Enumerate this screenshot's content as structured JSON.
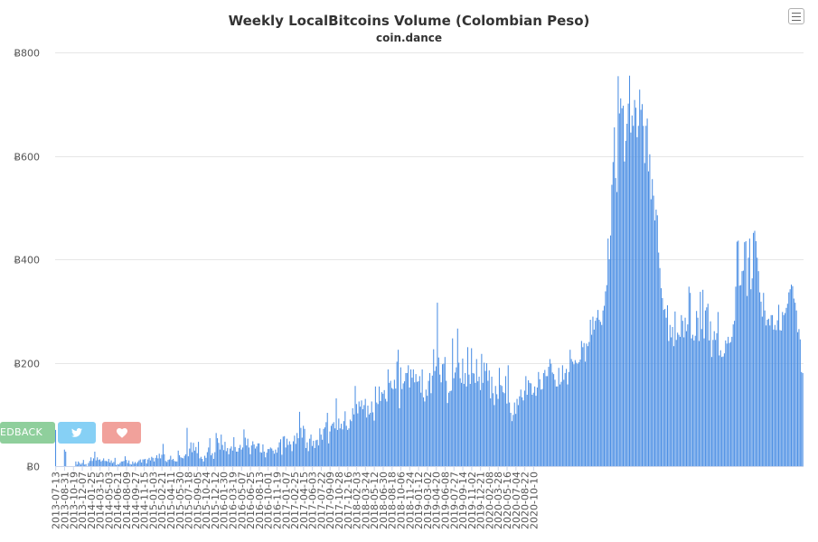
{
  "header": {
    "title": "Weekly LocalBitcoins Volume (Colombian Peso)",
    "subtitle": "coin.dance",
    "menu_icon": "hamburger-menu-icon"
  },
  "side_buttons": {
    "feedback_label": "EDBACK",
    "twitter_icon": "twitter-bird-icon",
    "heart_icon": "heart-icon",
    "colors": {
      "feedback": "#8fcf9c",
      "twitter": "#86d0f5",
      "heart": "#f1a19b"
    }
  },
  "chart_data": {
    "type": "bar",
    "title": "Weekly LocalBitcoins Volume (Colombian Peso)",
    "subtitle": "coin.dance",
    "xlabel": "",
    "ylabel": "",
    "ylim": [
      0,
      800
    ],
    "yticks": [
      0,
      200,
      400,
      600,
      800
    ],
    "ytick_prefix": "Ƀ",
    "grid": true,
    "legend": "none",
    "bar_color": "#4c8fe4",
    "x_tick_labels": [
      "2013-07-13",
      "2013-08-31",
      "2013-10-19",
      "2013-12-07",
      "2014-01-25",
      "2014-03-15",
      "2014-05-03",
      "2014-06-21",
      "2014-08-09",
      "2014-09-27",
      "2014-11-15",
      "2015-01-03",
      "2015-02-21",
      "2015-04-11",
      "2015-05-30",
      "2015-07-18",
      "2015-09-05",
      "2015-10-24",
      "2015-12-12",
      "2016-01-30",
      "2016-03-19",
      "2016-05-07",
      "2016-06-25",
      "2016-08-13",
      "2016-10-01",
      "2016-11-19",
      "2017-01-07",
      "2017-02-25",
      "2017-04-15",
      "2017-06-03",
      "2017-07-22",
      "2017-09-09",
      "2017-10-28",
      "2017-12-16",
      "2018-02-03",
      "2018-03-24",
      "2018-05-12",
      "2018-06-30",
      "2018-08-18",
      "2018-10-06",
      "2018-11-24",
      "2019-01-12",
      "2019-03-02",
      "2019-04-20",
      "2019-06-08",
      "2019-07-27",
      "2019-09-14",
      "2019-11-02",
      "2019-12-21",
      "2020-02-08",
      "2020-03-28",
      "2020-05-16",
      "2020-07-04",
      "2020-08-22",
      "2020-10-10"
    ],
    "values": [
      70,
      0,
      0,
      0,
      0,
      0,
      0,
      32,
      28,
      0,
      0,
      0,
      0,
      0,
      0,
      0,
      9,
      3,
      9,
      6,
      3,
      6,
      12,
      3,
      4,
      0,
      6,
      10,
      17,
      10,
      15,
      28,
      11,
      17,
      12,
      13,
      9,
      11,
      15,
      10,
      10,
      9,
      14,
      7,
      11,
      6,
      8,
      16,
      2,
      4,
      3,
      6,
      9,
      9,
      10,
      19,
      12,
      6,
      11,
      4,
      3,
      9,
      5,
      8,
      5,
      8,
      11,
      13,
      7,
      13,
      13,
      14,
      5,
      13,
      16,
      11,
      18,
      16,
      9,
      16,
      21,
      15,
      24,
      15,
      22,
      43,
      23,
      10,
      8,
      12,
      13,
      20,
      12,
      14,
      10,
      9,
      9,
      30,
      21,
      17,
      16,
      15,
      20,
      23,
      74,
      19,
      34,
      46,
      27,
      45,
      30,
      37,
      25,
      47,
      15,
      18,
      14,
      9,
      20,
      16,
      27,
      36,
      54,
      21,
      25,
      14,
      27,
      64,
      54,
      45,
      32,
      61,
      41,
      31,
      47,
      29,
      35,
      23,
      34,
      38,
      30,
      56,
      37,
      28,
      28,
      35,
      41,
      32,
      36,
      71,
      55,
      40,
      53,
      36,
      23,
      40,
      48,
      42,
      34,
      38,
      44,
      44,
      27,
      26,
      42,
      28,
      17,
      26,
      33,
      33,
      36,
      34,
      30,
      24,
      32,
      26,
      36,
      46,
      52,
      22,
      57,
      58,
      36,
      53,
      41,
      48,
      42,
      29,
      48,
      59,
      43,
      64,
      54,
      105,
      74,
      55,
      78,
      72,
      35,
      46,
      29,
      53,
      61,
      39,
      49,
      35,
      50,
      51,
      40,
      73,
      61,
      51,
      72,
      75,
      85,
      103,
      44,
      67,
      78,
      82,
      85,
      73,
      131,
      70,
      92,
      73,
      82,
      71,
      87,
      106,
      78,
      70,
      73,
      90,
      87,
      112,
      100,
      155,
      120,
      102,
      125,
      115,
      127,
      110,
      118,
      130,
      94,
      117,
      100,
      103,
      125,
      104,
      88,
      154,
      123,
      120,
      154,
      126,
      143,
      140,
      147,
      130,
      125,
      187,
      161,
      165,
      151,
      149,
      167,
      150,
      202,
      225,
      112,
      191,
      149,
      160,
      164,
      180,
      180,
      195,
      152,
      187,
      171,
      187,
      162,
      178,
      163,
      164,
      174,
      142,
      187,
      133,
      125,
      148,
      136,
      165,
      180,
      141,
      175,
      226,
      184,
      193,
      316,
      210,
      177,
      162,
      197,
      198,
      211,
      165,
      122,
      142,
      145,
      146,
      247,
      170,
      181,
      191,
      266,
      200,
      170,
      161,
      208,
      159,
      180,
      154,
      230,
      177,
      159,
      228,
      180,
      179,
      161,
      207,
      164,
      173,
      147,
      217,
      161,
      200,
      184,
      199,
      165,
      185,
      131,
      173,
      141,
      118,
      155,
      139,
      130,
      190,
      157,
      155,
      143,
      141,
      174,
      121,
      195,
      123,
      103,
      87,
      99,
      123,
      101,
      130,
      118,
      135,
      148,
      133,
      127,
      146,
      174,
      138,
      166,
      161,
      160,
      138,
      142,
      154,
      136,
      152,
      182,
      168,
      148,
      149,
      180,
      186,
      174,
      174,
      192,
      207,
      198,
      181,
      178,
      167,
      154,
      154,
      190,
      158,
      163,
      195,
      167,
      180,
      188,
      158,
      182,
      225,
      207,
      202,
      197,
      205,
      200,
      198,
      201,
      206,
      242,
      230,
      238,
      202,
      237,
      232,
      240,
      283,
      254,
      289,
      264,
      281,
      287,
      302,
      283,
      279,
      273,
      301,
      310,
      338,
      350,
      440,
      400,
      446,
      544,
      588,
      655,
      557,
      530,
      754,
      682,
      711,
      692,
      697,
      589,
      629,
      662,
      701,
      755,
      645,
      678,
      658,
      708,
      693,
      636,
      658,
      728,
      689,
      700,
      658,
      586,
      658,
      672,
      570,
      603,
      516,
      555,
      523,
      475,
      496,
      485,
      413,
      383,
      344,
      325,
      302,
      304,
      287,
      311,
      242,
      273,
      249,
      269,
      232,
      299,
      244,
      258,
      254,
      250,
      292,
      281,
      249,
      287,
      261,
      274,
      347,
      335,
      247,
      254,
      243,
      252,
      300,
      287,
      242,
      337,
      265,
      341,
      247,
      301,
      307,
      314,
      243,
      280,
      211,
      244,
      261,
      244,
      257,
      298,
      214,
      224,
      211,
      212,
      218,
      243,
      237,
      250,
      238,
      240,
      250,
      274,
      281,
      347,
      434,
      436,
      349,
      350,
      377,
      378,
      433,
      435,
      329,
      403,
      440,
      342,
      363,
      451,
      455,
      435,
      403,
      377,
      336,
      318,
      289,
      335,
      301,
      272,
      283,
      285,
      272,
      292,
      292,
      264,
      273,
      263,
      282,
      312,
      263,
      262,
      298,
      292,
      296,
      306,
      314,
      336,
      342,
      351,
      348,
      324,
      316,
      301,
      259,
      265,
      245,
      182,
      180
    ]
  }
}
